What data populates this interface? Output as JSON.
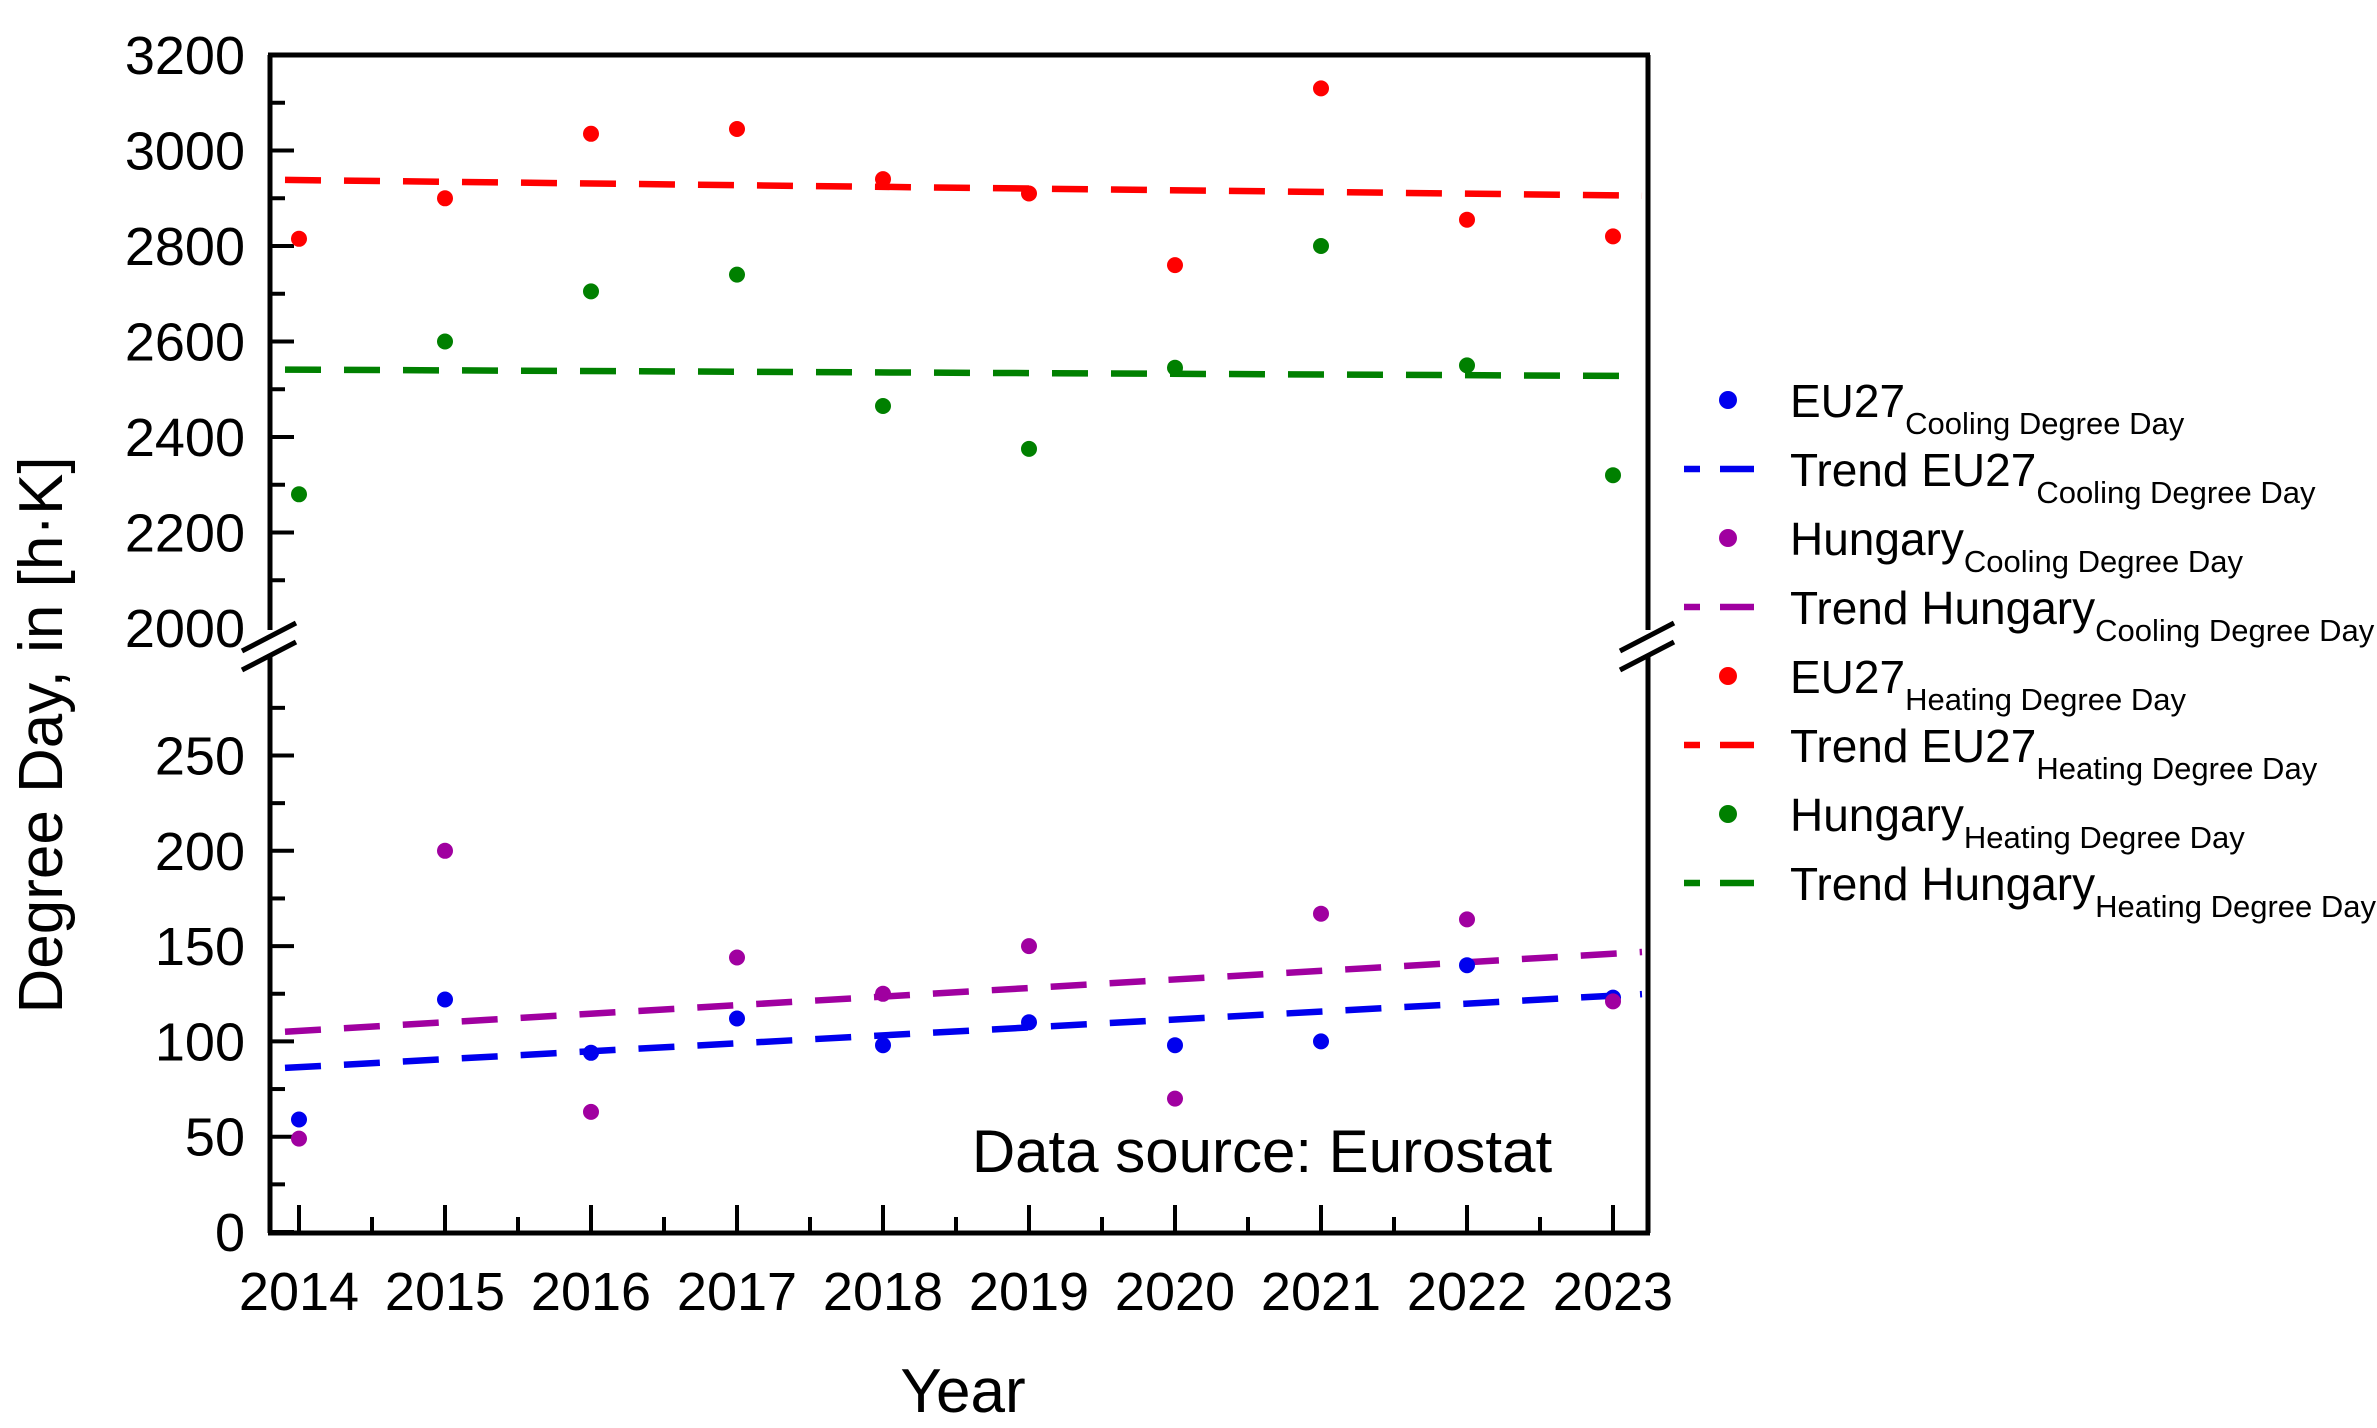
{
  "page": {
    "background": "#FFFFFF"
  },
  "chart_data": {
    "type": "scatter",
    "title": "",
    "xlabel": "Year",
    "ylabel": "Degree Day, in [h·K]",
    "annotation": "Data source: Eurostat",
    "legend_position": "right",
    "grid": false,
    "x_years": [
      2014,
      2015,
      2016,
      2017,
      2018,
      2019,
      2020,
      2021,
      2022,
      2023
    ],
    "x_tick_labels": [
      "2014",
      "2015",
      "2016",
      "2017",
      "2018",
      "2019",
      "2020",
      "2021",
      "2022",
      "2023"
    ],
    "y_axis": {
      "unit": "h·K",
      "axis_break": true,
      "upper_section": {
        "range_low": 2000,
        "range_high": 3200,
        "labeled_ticks": [
          3200,
          3000,
          2800,
          2600,
          2400,
          2200,
          2000
        ],
        "minor_ticks": [
          3100,
          2900,
          2700,
          2500,
          2300,
          2100
        ]
      },
      "lower_section": {
        "range_low": 0,
        "range_high": 300,
        "labeled_ticks": [
          250,
          200,
          150,
          100,
          50,
          0
        ],
        "minor_ticks": [
          275,
          225,
          175,
          125,
          75,
          25
        ]
      }
    },
    "series": [
      {
        "id": "eu27-cooling",
        "kind": "scatter",
        "section": "lower",
        "color": "#0000EE",
        "legend_main": "EU27",
        "legend_sub": "Cooling Degree Day",
        "values": [
          59,
          122,
          94,
          112,
          98,
          110,
          98,
          100,
          140,
          123
        ]
      },
      {
        "id": "trend-eu27-cooling",
        "kind": "trend",
        "section": "lower",
        "color": "#0000EE",
        "legend_main": "Trend EU27",
        "legend_sub": "Cooling Degree Day",
        "trend_start_2014": 86.5,
        "trend_end_2023": 124
      },
      {
        "id": "hungary-cooling",
        "kind": "scatter",
        "section": "lower",
        "color": "#A000A0",
        "legend_main": "Hungary",
        "legend_sub": "Cooling Degree Day",
        "values": [
          49,
          200,
          63,
          144,
          125,
          150,
          70,
          167,
          164,
          121
        ]
      },
      {
        "id": "trend-hungary-cooling",
        "kind": "trend",
        "section": "lower",
        "color": "#A000A0",
        "legend_main": "Trend Hungary",
        "legend_sub": "Cooling Degree Day",
        "trend_start_2014": 105.5,
        "trend_end_2023": 146
      },
      {
        "id": "eu27-heating",
        "kind": "scatter",
        "section": "upper",
        "color": "#FF0000",
        "legend_main": "EU27",
        "legend_sub": "Heating Degree Day",
        "values": [
          2815,
          2900,
          3035,
          3045,
          2940,
          2910,
          2760,
          3130,
          2855,
          2820
        ]
      },
      {
        "id": "trend-eu27-heating",
        "kind": "trend",
        "section": "upper",
        "color": "#FF0000",
        "legend_main": "Trend EU27",
        "legend_sub": "Heating Degree Day",
        "trend_start_2014": 2938,
        "trend_end_2023": 2906
      },
      {
        "id": "hungary-heating",
        "kind": "scatter",
        "section": "upper",
        "color": "#008000",
        "legend_main": "Hungary",
        "legend_sub": "Heating Degree Day",
        "values": [
          2280,
          2600,
          2705,
          2740,
          2465,
          2375,
          2545,
          2800,
          2550,
          2320
        ]
      },
      {
        "id": "trend-hungary-heating",
        "kind": "trend",
        "section": "upper",
        "color": "#008000",
        "legend_main": "Trend Hungary",
        "legend_sub": "Heating Degree Day",
        "trend_start_2014": 2541,
        "trend_end_2023": 2528
      }
    ]
  }
}
